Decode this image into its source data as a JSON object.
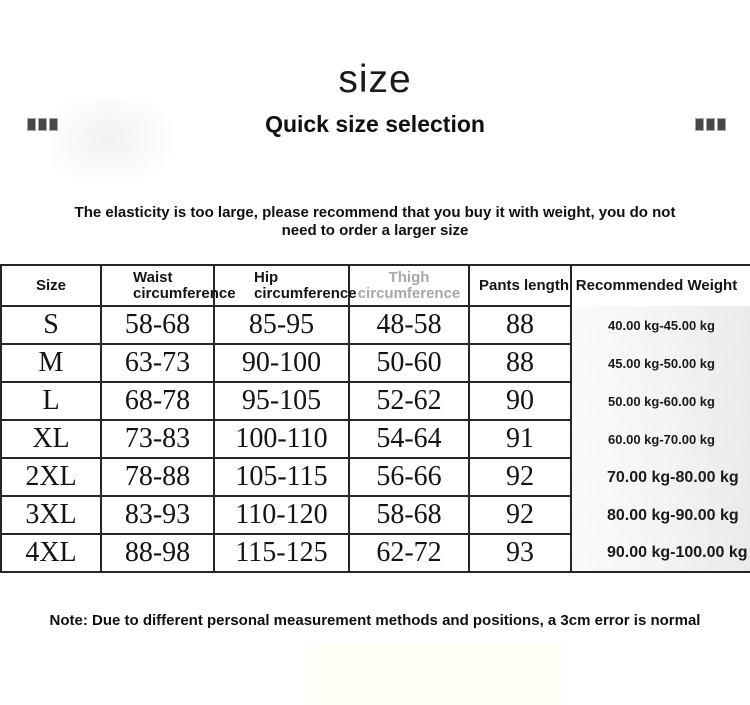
{
  "page": {
    "title": "size",
    "subtitle": "Quick size selection",
    "notice": "The elasticity is too large, please recommend that you buy it with weight, you do not need to order a larger size",
    "footnote": "Note: Due to different personal measurement methods and positions, a 3cm error is normal"
  },
  "icons": {
    "left_squares": "three-squares-ornament",
    "right_squares": "three-squares-ornament"
  },
  "colors": {
    "border": "#262626",
    "text": "#111111",
    "muted_header": "#a8a8a8",
    "square_ornament": "#474747",
    "background": "#ffffff"
  },
  "table": {
    "headers": [
      {
        "line1": "Size",
        "line2": ""
      },
      {
        "line1": "Waist",
        "line2": "circumference"
      },
      {
        "line1": "Hip",
        "line2": "circumference"
      },
      {
        "line1": "Thigh",
        "line2": "circumference"
      },
      {
        "line1": "Pants length",
        "line2": ""
      },
      {
        "line1": "Recommended Weight",
        "line2": ""
      }
    ],
    "rows": [
      {
        "size": "S",
        "waist": "58-68",
        "hip": "85-95",
        "thigh": "48-58",
        "length": "88",
        "weight": "40.00 kg-45.00 kg"
      },
      {
        "size": "M",
        "waist": "63-73",
        "hip": "90-100",
        "thigh": "50-60",
        "length": "88",
        "weight": "45.00 kg-50.00 kg"
      },
      {
        "size": "L",
        "waist": "68-78",
        "hip": "95-105",
        "thigh": "52-62",
        "length": "90",
        "weight": "50.00 kg-60.00 kg"
      },
      {
        "size": "XL",
        "waist": "73-83",
        "hip": "100-110",
        "thigh": "54-64",
        "length": "91",
        "weight": "60.00 kg-70.00 kg"
      },
      {
        "size": "2XL",
        "waist": "78-88",
        "hip": "105-115",
        "thigh": "56-66",
        "length": "92",
        "weight": "70.00 kg-80.00 kg"
      },
      {
        "size": "3XL",
        "waist": "83-93",
        "hip": "110-120",
        "thigh": "58-68",
        "length": "92",
        "weight": "80.00 kg-90.00 kg"
      },
      {
        "size": "4XL",
        "waist": "88-98",
        "hip": "115-125",
        "thigh": "62-72",
        "length": "93",
        "weight": "90.00 kg-100.00 kg"
      }
    ]
  }
}
